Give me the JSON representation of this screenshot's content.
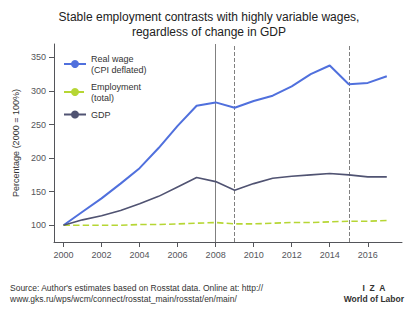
{
  "chart_data": {
    "type": "line",
    "title": "Stable employment contrasts with highly variable wages,\nregardless of change in GDP",
    "y_label": "Percentage (2000 = 100%)",
    "x": [
      2000,
      2001,
      2002,
      2003,
      2004,
      2005,
      2006,
      2007,
      2008,
      2009,
      2010,
      2011,
      2012,
      2013,
      2014,
      2015,
      2016,
      2017
    ],
    "series": [
      {
        "name": "Real wage\n(CPI deflated)",
        "line_style": "solid",
        "values": [
          100,
          120,
          140,
          162,
          185,
          215,
          248,
          278,
          283,
          275,
          285,
          293,
          307,
          325,
          338,
          310,
          312,
          322
        ]
      },
      {
        "name": "Employment\n(total)",
        "line_style": "dashed",
        "values": [
          100,
          100,
          100,
          100,
          101,
          101,
          102,
          103,
          104,
          102,
          102,
          103,
          104,
          104,
          105,
          106,
          106,
          107
        ]
      },
      {
        "name": "GDP",
        "line_style": "solid",
        "values": [
          100,
          108,
          114,
          122,
          132,
          143,
          157,
          171,
          165,
          152,
          162,
          170,
          173,
          175,
          177,
          175,
          172,
          172
        ]
      }
    ],
    "vlines": [
      {
        "x": 2008,
        "line_style": "solid",
        "color": "#808080"
      },
      {
        "x": 2009,
        "line_style": "dashed",
        "color": "#808080"
      },
      {
        "x": 2015,
        "line_style": "dashed",
        "color": "#808080"
      }
    ],
    "xlim": [
      1999.5,
      2017.8
    ],
    "xticks": [
      2000,
      2002,
      2004,
      2006,
      2008,
      2010,
      2012,
      2014,
      2016
    ],
    "ylim": [
      75,
      370
    ],
    "yticks": [
      100,
      150,
      200,
      250,
      300,
      350
    ],
    "grid": false,
    "legend": "upper left",
    "annotations": [
      "Source: Author's estimates based on Rosstat data. Online at: http://\nwww.gks.ru/wps/wcm/connect/rosstat_main/rosstat/en/main/",
      "I  Z  A\nWorld of Labor"
    ]
  }
}
